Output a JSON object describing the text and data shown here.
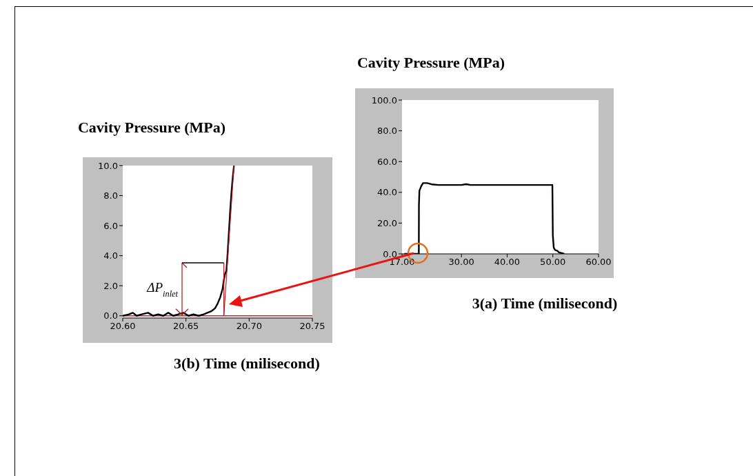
{
  "chart_data": [
    {
      "type": "line",
      "title": "Cavity Pressure (MPa)",
      "xlabel": "3(a) Time (milisecond)",
      "xlim": [
        17,
        60
      ],
      "xticks": [
        {
          "value": 17,
          "label": "17.00"
        },
        {
          "value": 30,
          "label": "30.00"
        },
        {
          "value": 40,
          "label": "40.00"
        },
        {
          "value": 50,
          "label": "50.00"
        },
        {
          "value": 60,
          "label": "60.00"
        }
      ],
      "ylim": [
        0,
        100
      ],
      "yticks": [
        {
          "value": 0,
          "label": "0.0"
        },
        {
          "value": 20,
          "label": "20.0"
        },
        {
          "value": 40,
          "label": "40.0"
        },
        {
          "value": 60,
          "label": "60.0"
        },
        {
          "value": 80,
          "label": "80.0"
        },
        {
          "value": 100,
          "label": "100.0"
        }
      ],
      "series": [
        {
          "color": "#000000",
          "x": [
            17.5,
            19,
            20.6,
            20.68,
            20.7,
            20.8,
            21.2,
            21.6,
            22.5,
            23.5,
            25,
            30,
            31,
            32,
            40,
            45,
            49.9,
            50.0,
            50.2,
            50.5,
            51.0,
            51.3,
            52.5
          ],
          "values": [
            0,
            0,
            0,
            0,
            31,
            41,
            44,
            46,
            46,
            45.2,
            44.8,
            44.8,
            45.3,
            44.8,
            44.8,
            44.8,
            44.8,
            12,
            4,
            2.5,
            2,
            1,
            0
          ]
        }
      ]
    },
    {
      "type": "line",
      "title": "Cavity Pressure (MPa)",
      "xlabel": "3(b) Time (milisecond)",
      "xlim": [
        20.6,
        20.75
      ],
      "xticks": [
        {
          "value": 20.6,
          "label": "20.60"
        },
        {
          "value": 20.65,
          "label": "20.65"
        },
        {
          "value": 20.7,
          "label": "20.70"
        },
        {
          "value": 20.75,
          "label": "20.75"
        }
      ],
      "ylim": [
        -0.15,
        10
      ],
      "yticks": [
        {
          "value": 0,
          "label": "0.0"
        },
        {
          "value": 2,
          "label": "2.0"
        },
        {
          "value": 4,
          "label": "4.0"
        },
        {
          "value": 6,
          "label": "6.0"
        },
        {
          "value": 8,
          "label": "8.0"
        },
        {
          "value": 10,
          "label": "10.0"
        }
      ],
      "ref_lines": [
        {
          "axis": "y",
          "value": 0,
          "color": "#cc2222"
        }
      ],
      "annotations": [
        "ΔP$_{inlet}$"
      ],
      "series": [
        {
          "color": "#000000",
          "x": [
            20.6,
            20.605,
            20.608,
            20.611,
            20.615,
            20.62,
            20.624,
            20.628,
            20.632,
            20.636,
            20.64,
            20.644,
            20.648,
            20.652,
            20.656,
            20.66,
            20.664,
            20.667,
            20.67,
            20.673,
            20.675,
            20.677,
            20.679,
            20.68,
            20.681,
            20.682,
            20.683,
            20.684,
            20.685,
            20.686,
            20.687,
            20.688
          ],
          "values": [
            0,
            0.1,
            0.2,
            0,
            0.1,
            0.2,
            0,
            0.1,
            0,
            0.2,
            0,
            0.1,
            0.2,
            0,
            0.1,
            0,
            0.1,
            0.2,
            0.3,
            0.5,
            0.8,
            1.2,
            1.8,
            2.4,
            2.8,
            3.0,
            4.2,
            5.6,
            7.0,
            8.2,
            9.2,
            10
          ]
        },
        {
          "type": "line",
          "color": "#b22222",
          "x": [
            20.68,
            20.688
          ],
          "values": [
            0,
            10
          ]
        }
      ]
    }
  ]
}
